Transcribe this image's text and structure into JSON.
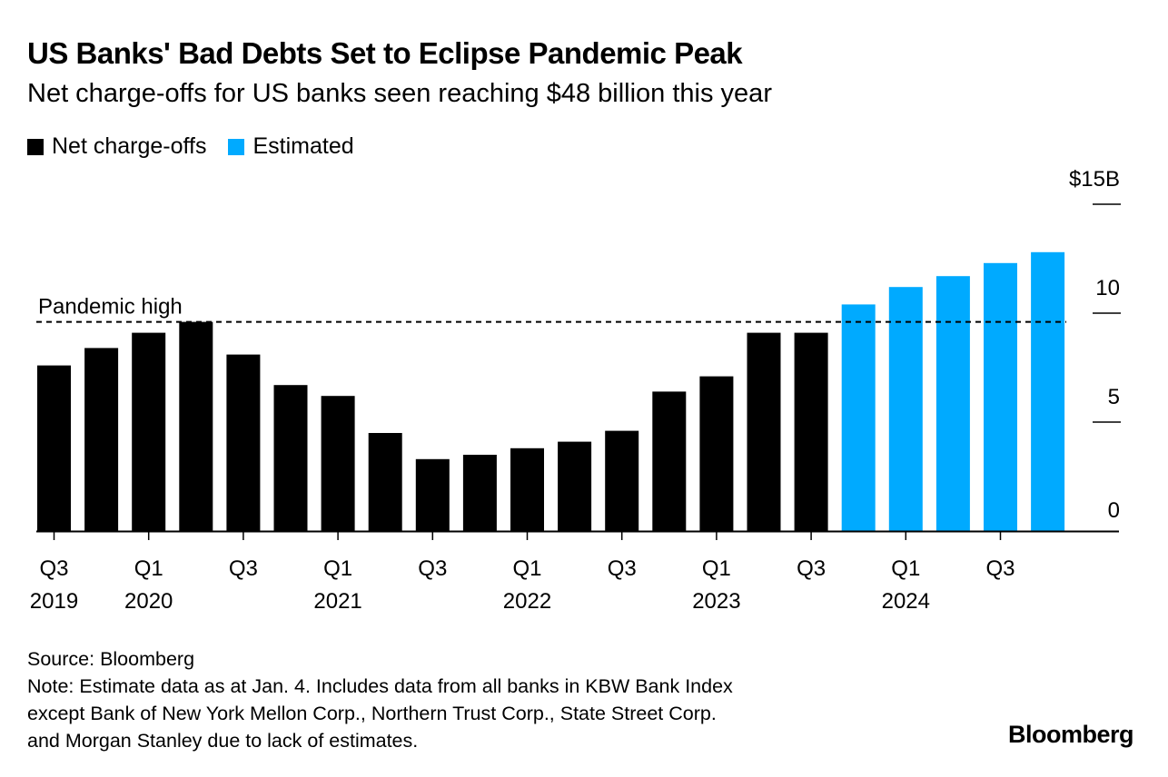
{
  "title": "US Banks' Bad Debts Set to Eclipse Pandemic Peak",
  "subtitle": "Net charge-offs for US banks seen reaching $48 billion this year",
  "legend": [
    {
      "label": "Net charge-offs",
      "color": "#000000"
    },
    {
      "label": "Estimated",
      "color": "#00aaff"
    }
  ],
  "chart_data": {
    "type": "bar",
    "title": "US Banks' Bad Debts Set to Eclipse Pandemic Peak",
    "categories": [
      "Q3 2019",
      "Q4 2019",
      "Q1 2020",
      "Q2 2020",
      "Q3 2020",
      "Q4 2020",
      "Q1 2021",
      "Q2 2021",
      "Q3 2021",
      "Q4 2021",
      "Q1 2022",
      "Q2 2022",
      "Q3 2022",
      "Q4 2022",
      "Q1 2023",
      "Q2 2023",
      "Q3 2023",
      "Q4 2023",
      "Q1 2024",
      "Q2 2024",
      "Q3 2024",
      "Q4 2024"
    ],
    "series": [
      {
        "name": "Net charge-offs",
        "color": "#000000",
        "values": [
          7.6,
          8.4,
          9.1,
          9.6,
          8.1,
          6.7,
          6.2,
          4.5,
          3.3,
          3.5,
          3.8,
          4.1,
          4.6,
          6.4,
          7.1,
          9.1,
          9.1,
          null,
          null,
          null,
          null,
          null
        ]
      },
      {
        "name": "Estimated",
        "color": "#00aaff",
        "values": [
          null,
          null,
          null,
          null,
          null,
          null,
          null,
          null,
          null,
          null,
          null,
          null,
          null,
          null,
          null,
          null,
          null,
          10.4,
          11.2,
          11.7,
          12.3,
          12.8
        ]
      }
    ],
    "y_axis": {
      "min": 0,
      "max": 15,
      "ticks": [
        0,
        5,
        10,
        15
      ],
      "tick_labels": [
        "0",
        "5",
        "10",
        "$15B"
      ],
      "position": "right"
    },
    "x_tick_labels": [
      {
        "index": 0,
        "quarter": "Q3",
        "year": "2019"
      },
      {
        "index": 2,
        "quarter": "Q1",
        "year": "2020"
      },
      {
        "index": 4,
        "quarter": "Q3",
        "year": ""
      },
      {
        "index": 6,
        "quarter": "Q1",
        "year": "2021"
      },
      {
        "index": 8,
        "quarter": "Q3",
        "year": ""
      },
      {
        "index": 10,
        "quarter": "Q1",
        "year": "2022"
      },
      {
        "index": 12,
        "quarter": "Q3",
        "year": ""
      },
      {
        "index": 14,
        "quarter": "Q1",
        "year": "2023"
      },
      {
        "index": 16,
        "quarter": "Q3",
        "year": ""
      },
      {
        "index": 18,
        "quarter": "Q1",
        "year": "2024"
      },
      {
        "index": 20,
        "quarter": "Q3",
        "year": ""
      }
    ],
    "reference_line": {
      "label": "Pandemic high",
      "value": 9.6,
      "style": "dashed"
    }
  },
  "source": "Source: Bloomberg",
  "note_lines": [
    "Note: Estimate data as at Jan. 4. Includes data from all banks in KBW Bank Index",
    "except Bank of New York Mellon Corp., Northern Trust Corp., State Street Corp.",
    "and Morgan Stanley due to lack of estimates."
  ],
  "brand": "Bloomberg"
}
